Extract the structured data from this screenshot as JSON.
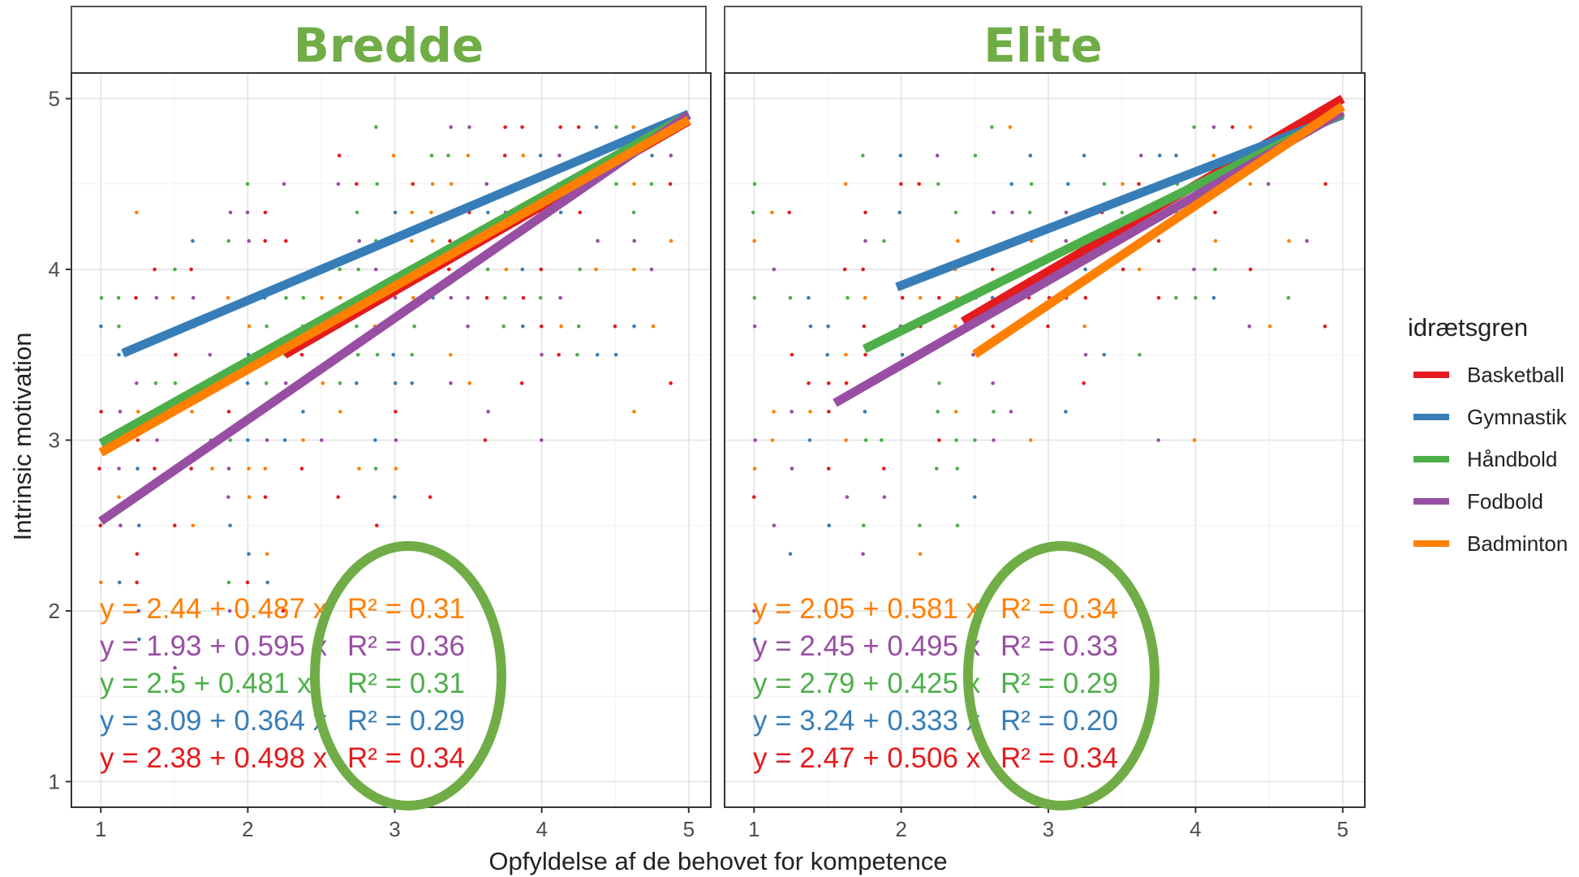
{
  "chart_data": {
    "type": "scatter",
    "xlabel": "Opfyldelse af de behovet for kompetence",
    "ylabel": "Intrinsic motivation",
    "xlim": [
      0.8,
      5.15
    ],
    "ylim": [
      0.85,
      5.15
    ],
    "x_ticks": [
      "1",
      "2",
      "3",
      "4",
      "5"
    ],
    "y_ticks": [
      "1",
      "2",
      "3",
      "4",
      "5"
    ],
    "grid": true,
    "legend": {
      "title": "idrætsgren",
      "placement": "right",
      "entries": [
        {
          "name": "Basketball",
          "color": "#e41a1c"
        },
        {
          "name": "Gymnastik",
          "color": "#377eb8"
        },
        {
          "name": "Håndbold",
          "color": "#4daf4a"
        },
        {
          "name": "Fodbold",
          "color": "#984ea3"
        },
        {
          "name": "Badminton",
          "color": "#ff7f00"
        }
      ]
    },
    "panels": [
      {
        "title": "Bredde",
        "title_color": "#70ad47",
        "series": [
          {
            "name": "Basketball",
            "x_range": [
              2.25,
              5.0
            ],
            "intercept": 2.38,
            "slope": 0.498,
            "r2": "0.34",
            "equation": "y = 2.38 + 0.498 x",
            "r2_label": "R² = 0.34"
          },
          {
            "name": "Gymnastik",
            "x_range": [
              1.15,
              5.0
            ],
            "intercept": 3.09,
            "slope": 0.364,
            "r2": "0.29",
            "equation": "y = 3.09 + 0.364 x",
            "r2_label": "R² = 0.29"
          },
          {
            "name": "Håndbold",
            "x_range": [
              1.0,
              5.0
            ],
            "intercept": 2.5,
            "slope": 0.481,
            "r2": "0.31",
            "equation": "y = 2.5 + 0.481 x",
            "r2_label": "R² = 0.31"
          },
          {
            "name": "Fodbold",
            "x_range": [
              1.0,
              5.0
            ],
            "intercept": 1.93,
            "slope": 0.595,
            "r2": "0.36",
            "equation": "y = 1.93 + 0.595 x",
            "r2_label": "R² = 0.36"
          },
          {
            "name": "Badminton",
            "x_range": [
              1.0,
              5.0
            ],
            "intercept": 2.44,
            "slope": 0.487,
            "r2": "0.31",
            "equation": "y = 2.44 + 0.487 x",
            "r2_label": "R² = 0.31"
          }
        ]
      },
      {
        "title": "Elite",
        "title_color": "#70ad47",
        "series": [
          {
            "name": "Basketball",
            "x_range": [
              2.42,
              5.0
            ],
            "intercept": 2.47,
            "slope": 0.506,
            "r2": "0.34",
            "equation": "y = 2.47 + 0.506 x",
            "r2_label": "R² = 0.34"
          },
          {
            "name": "Gymnastik",
            "x_range": [
              1.97,
              5.0
            ],
            "intercept": 3.24,
            "slope": 0.333,
            "r2": "0.20",
            "equation": "y = 3.24 + 0.333 x",
            "r2_label": "R² = 0.20"
          },
          {
            "name": "Håndbold",
            "x_range": [
              1.75,
              5.0
            ],
            "intercept": 2.79,
            "slope": 0.425,
            "r2": "0.29",
            "equation": "y = 2.79 + 0.425 x",
            "r2_label": "R² = 0.29"
          },
          {
            "name": "Fodbold",
            "x_range": [
              1.55,
              5.0
            ],
            "intercept": 2.45,
            "slope": 0.495,
            "r2": "0.33",
            "equation": "y = 2.45 + 0.495 x",
            "r2_label": "R² = 0.33"
          },
          {
            "name": "Badminton",
            "x_range": [
              2.5,
              5.0
            ],
            "intercept": 2.05,
            "slope": 0.581,
            "r2": "0.34",
            "equation": "y = 2.05 + 0.581 x",
            "r2_label": "R² = 0.34"
          }
        ]
      }
    ],
    "equation_order": [
      "Badminton",
      "Fodbold",
      "Håndbold",
      "Gymnastik",
      "Basketball"
    ],
    "annotation": {
      "type": "ellipse",
      "color": "#70ad47",
      "highlights": "R² values"
    }
  }
}
